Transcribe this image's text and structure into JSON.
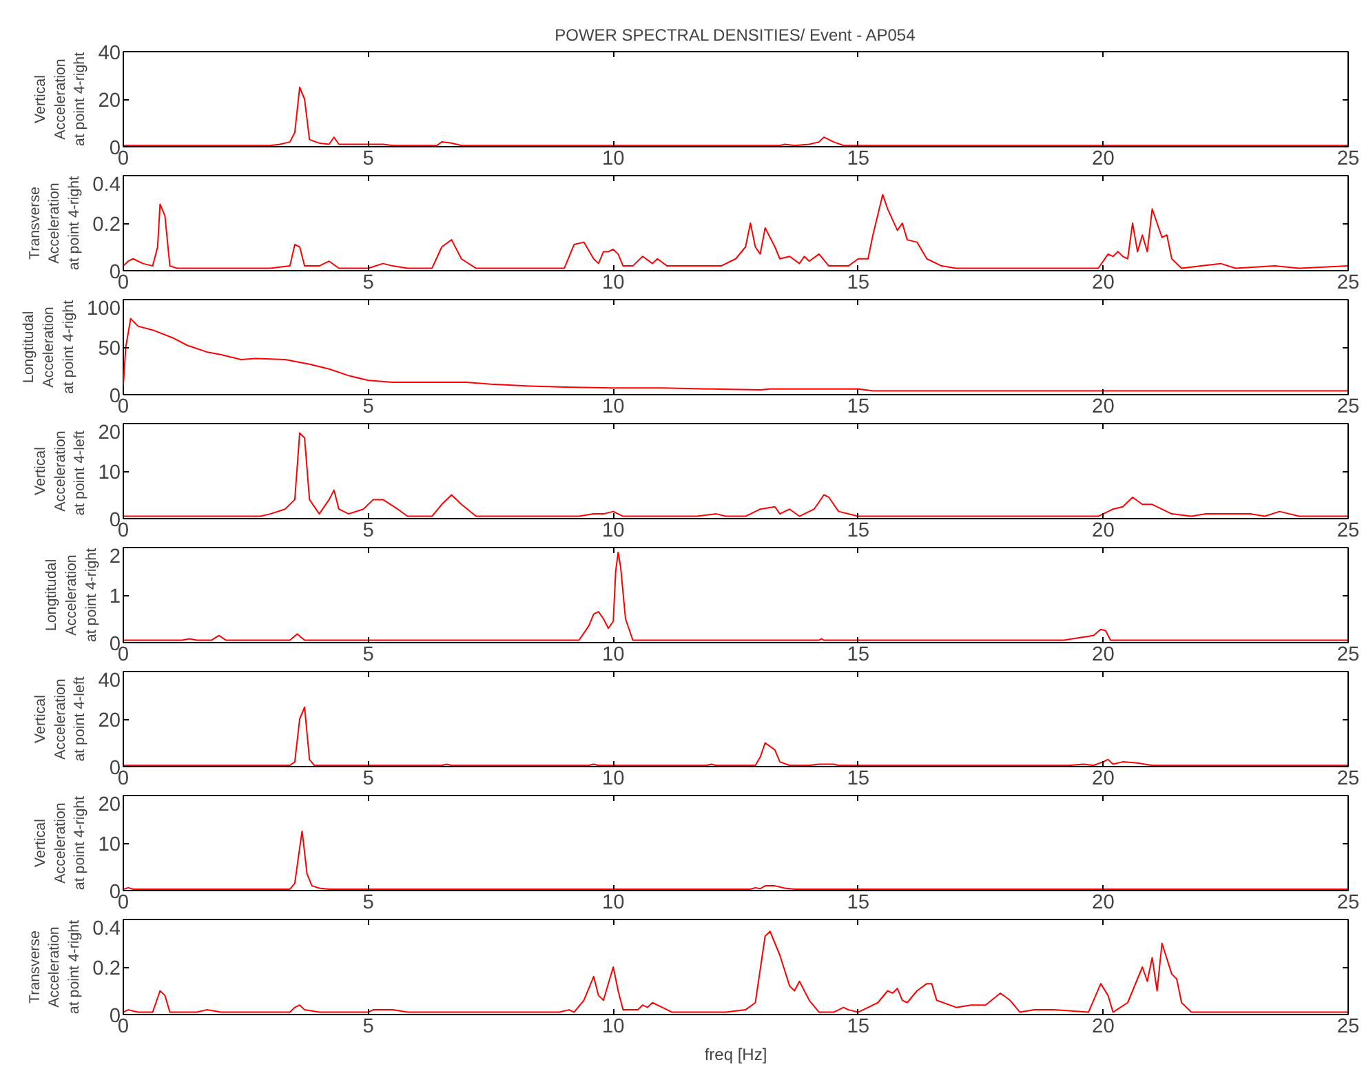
{
  "chart_data": [
    {
      "type": "line",
      "title": "POWER SPECTRAL DENSITIES/ Event - AP054",
      "ylabel": "Vertical\nAcceleration\nat point 4-right",
      "color": "#ff0000",
      "xlim": [
        0,
        25
      ],
      "ylim": [
        0,
        40
      ],
      "xticks": [
        0,
        5,
        10,
        15,
        20,
        25
      ],
      "yticks": [
        0,
        20,
        40
      ],
      "x": [
        0,
        3,
        3.2,
        3.4,
        3.5,
        3.6,
        3.7,
        3.8,
        4.0,
        4.2,
        4.3,
        4.4,
        5,
        5.3,
        5.5,
        6.4,
        6.5,
        6.7,
        6.9,
        13.4,
        13.5,
        13.7,
        14.0,
        14.2,
        14.3,
        14.5,
        14.7,
        25
      ],
      "values": [
        0.5,
        0.5,
        1,
        2,
        6,
        25,
        20,
        3,
        1.5,
        1,
        4,
        1,
        1,
        1,
        0.5,
        0.5,
        2,
        1.5,
        0.5,
        0.5,
        1,
        0.5,
        1,
        2,
        4,
        2,
        0.5,
        0.5
      ]
    },
    {
      "type": "line",
      "ylabel": "Transverse\nAcceleration\nat point 4-right",
      "color": "#ff0000",
      "xlim": [
        0,
        25
      ],
      "ylim": [
        0,
        0.4
      ],
      "xticks": [
        0,
        5,
        10,
        15,
        20,
        25
      ],
      "yticks": [
        0,
        0.2,
        0.4
      ],
      "x": [
        0,
        0.1,
        0.2,
        0.4,
        0.6,
        0.7,
        0.75,
        0.85,
        0.95,
        1.1,
        3.0,
        3.4,
        3.5,
        3.6,
        3.7,
        4.0,
        4.2,
        4.4,
        5.0,
        5.3,
        5.5,
        5.8,
        6.3,
        6.5,
        6.7,
        6.9,
        7.2,
        9.0,
        9.2,
        9.4,
        9.6,
        9.7,
        9.8,
        9.9,
        10.0,
        10.1,
        10.2,
        10.4,
        10.6,
        10.8,
        10.9,
        11.1,
        12.2,
        12.5,
        12.7,
        12.8,
        12.9,
        13.0,
        13.1,
        13.3,
        13.4,
        13.6,
        13.8,
        13.9,
        14.0,
        14.2,
        14.4,
        14.8,
        15.0,
        15.2,
        15.3,
        15.5,
        15.6,
        15.8,
        15.9,
        16.0,
        16.2,
        16.4,
        16.7,
        17.0,
        18.0,
        19.0,
        19.9,
        20.1,
        20.2,
        20.3,
        20.4,
        20.5,
        20.6,
        20.7,
        20.8,
        20.9,
        21.0,
        21.2,
        21.3,
        21.4,
        21.6,
        22.0,
        22.4,
        22.7,
        23.5,
        24.0,
        25
      ],
      "values": [
        0.02,
        0.04,
        0.05,
        0.03,
        0.02,
        0.1,
        0.28,
        0.23,
        0.02,
        0.01,
        0.01,
        0.02,
        0.11,
        0.1,
        0.02,
        0.02,
        0.04,
        0.01,
        0.01,
        0.03,
        0.02,
        0.01,
        0.01,
        0.1,
        0.13,
        0.05,
        0.01,
        0.01,
        0.11,
        0.12,
        0.05,
        0.03,
        0.08,
        0.08,
        0.09,
        0.07,
        0.02,
        0.02,
        0.06,
        0.03,
        0.05,
        0.02,
        0.02,
        0.05,
        0.1,
        0.2,
        0.1,
        0.07,
        0.18,
        0.1,
        0.05,
        0.06,
        0.03,
        0.06,
        0.04,
        0.07,
        0.02,
        0.02,
        0.05,
        0.05,
        0.15,
        0.32,
        0.26,
        0.17,
        0.2,
        0.13,
        0.12,
        0.05,
        0.02,
        0.01,
        0.01,
        0.01,
        0.01,
        0.07,
        0.06,
        0.08,
        0.06,
        0.05,
        0.2,
        0.08,
        0.15,
        0.08,
        0.26,
        0.14,
        0.15,
        0.05,
        0.01,
        0.02,
        0.03,
        0.01,
        0.02,
        0.01,
        0.02
      ]
    },
    {
      "type": "line",
      "ylabel": "Longtitudal\nAcceleration\nat point 4-right",
      "color": "#ff0000",
      "xlim": [
        0,
        25
      ],
      "ylim": [
        0,
        100
      ],
      "xticks": [
        0,
        5,
        10,
        15,
        20,
        25
      ],
      "yticks": [
        0,
        50,
        100
      ],
      "x": [
        0,
        0.05,
        0.15,
        0.3,
        0.6,
        1.0,
        1.3,
        1.7,
        2.0,
        2.4,
        2.7,
        3.3,
        3.8,
        4.2,
        4.6,
        5.0,
        5.5,
        7.0,
        7.5,
        8.3,
        9.0,
        10.0,
        11.0,
        12.0,
        13.0,
        13.2,
        15.0,
        15.3,
        25
      ],
      "values": [
        10,
        50,
        80,
        72,
        68,
        60,
        52,
        45,
        42,
        37,
        38,
        37,
        32,
        27,
        20,
        15,
        13,
        13,
        11,
        9,
        8,
        7,
        7,
        6,
        5,
        6,
        6,
        4,
        4
      ]
    },
    {
      "type": "line",
      "ylabel": "Vertical\nAcceleration\nat point  4-left",
      "color": "#ff0000",
      "xlim": [
        0,
        25
      ],
      "ylim": [
        0,
        20
      ],
      "xticks": [
        0,
        5,
        10,
        15,
        20,
        25
      ],
      "yticks": [
        0,
        10,
        20
      ],
      "x": [
        0,
        2.8,
        3.0,
        3.3,
        3.5,
        3.6,
        3.7,
        3.8,
        4.0,
        4.2,
        4.3,
        4.4,
        4.6,
        4.9,
        5.1,
        5.3,
        5.6,
        5.8,
        6.3,
        6.5,
        6.7,
        6.9,
        7.2,
        9.3,
        9.6,
        9.8,
        10.0,
        10.2,
        11.7,
        12.1,
        12.3,
        12.7,
        13.0,
        13.3,
        13.4,
        13.6,
        13.8,
        14.1,
        14.3,
        14.4,
        14.6,
        15.0,
        19.9,
        20.2,
        20.4,
        20.6,
        20.8,
        21.0,
        21.4,
        21.8,
        22.1,
        23.0,
        23.3,
        23.6,
        24.0,
        25
      ],
      "values": [
        0.5,
        0.5,
        1,
        2,
        4,
        18,
        17,
        4,
        1,
        4,
        6,
        2,
        1,
        2,
        4,
        4,
        2,
        0.5,
        0.5,
        3,
        5,
        3,
        0.5,
        0.5,
        1,
        1,
        1.5,
        0.5,
        0.5,
        1,
        0.5,
        0.5,
        2,
        2.5,
        1,
        2,
        0.5,
        2,
        5,
        4.5,
        1.5,
        0.5,
        0.5,
        2,
        2.5,
        4.5,
        3,
        3,
        1,
        0.5,
        1,
        1,
        0.5,
        1.5,
        0.5,
        0.5
      ]
    },
    {
      "type": "line",
      "ylabel": "Longtitudal\nAcceleration\nat point 4-right",
      "color": "#ff0000",
      "xlim": [
        0,
        25
      ],
      "ylim": [
        0,
        2
      ],
      "xticks": [
        0,
        5,
        10,
        15,
        20,
        25
      ],
      "yticks": [
        0,
        1,
        2
      ],
      "x": [
        0,
        1.2,
        1.35,
        1.5,
        1.8,
        1.95,
        2.1,
        3.4,
        3.55,
        3.7,
        9.3,
        9.5,
        9.6,
        9.7,
        9.8,
        9.9,
        10.0,
        10.05,
        10.1,
        10.15,
        10.25,
        10.4,
        14.2,
        14.25,
        14.3,
        19.2,
        19.5,
        19.8,
        19.95,
        20.05,
        20.15,
        25
      ],
      "values": [
        0.05,
        0.05,
        0.08,
        0.05,
        0.05,
        0.15,
        0.05,
        0.05,
        0.18,
        0.05,
        0.05,
        0.35,
        0.6,
        0.65,
        0.5,
        0.3,
        0.45,
        1.5,
        1.9,
        1.6,
        0.5,
        0.05,
        0.05,
        0.08,
        0.05,
        0.05,
        0.1,
        0.15,
        0.28,
        0.25,
        0.05,
        0.05
      ]
    },
    {
      "type": "line",
      "ylabel": "Vertical\nAcceleration\nat point 4-left",
      "color": "#ff0000",
      "xlim": [
        0,
        25
      ],
      "ylim": [
        0,
        40
      ],
      "xticks": [
        0,
        5,
        10,
        15,
        20,
        25
      ],
      "yticks": [
        0,
        20,
        40
      ],
      "x": [
        0,
        3.4,
        3.5,
        3.6,
        3.7,
        3.8,
        3.9,
        6.5,
        6.6,
        6.7,
        9.5,
        9.6,
        9.7,
        11.9,
        12.0,
        12.1,
        12.9,
        13.0,
        13.1,
        13.3,
        13.4,
        13.6,
        14.0,
        14.2,
        14.5,
        14.6,
        19.3,
        19.6,
        19.8,
        20.0,
        20.1,
        20.2,
        20.4,
        20.7,
        21.0,
        25
      ],
      "values": [
        0.5,
        0.5,
        2,
        20,
        25,
        3,
        0.5,
        0.5,
        1,
        0.5,
        0.5,
        1,
        0.5,
        0.5,
        1,
        0.5,
        0.5,
        4,
        10,
        7,
        2,
        0.5,
        0.5,
        1,
        1,
        0.5,
        0.5,
        1,
        0.5,
        2,
        3,
        1,
        2,
        1.5,
        0.5,
        0.5
      ]
    },
    {
      "type": "line",
      "ylabel": "Vertical\nAcceleration\nat point 4-right",
      "color": "#ff0000",
      "xlim": [
        0,
        25
      ],
      "ylim": [
        0,
        20
      ],
      "xticks": [
        0,
        5,
        10,
        15,
        20,
        25
      ],
      "yticks": [
        0,
        10,
        20
      ],
      "x": [
        0,
        0.1,
        0.2,
        3.4,
        3.5,
        3.6,
        3.65,
        3.75,
        3.85,
        4.0,
        4.2,
        12.8,
        12.9,
        13.0,
        13.1,
        13.3,
        13.5,
        13.7,
        25
      ],
      "values": [
        0.3,
        0.6,
        0.3,
        0.3,
        1.5,
        9,
        12.5,
        3.5,
        1,
        0.5,
        0.3,
        0.3,
        0.6,
        0.4,
        1,
        1,
        0.5,
        0.3,
        0.3
      ]
    },
    {
      "type": "line",
      "ylabel": "Transverse\nAcceleration\nat point 4-right",
      "xlabel": "freq [Hz]",
      "color": "#ff0000",
      "xlim": [
        0,
        25
      ],
      "ylim": [
        0,
        0.4
      ],
      "xticks": [
        0,
        5,
        10,
        15,
        20,
        25
      ],
      "yticks": [
        0,
        0.2,
        0.4
      ],
      "x": [
        0,
        0.1,
        0.3,
        0.6,
        0.75,
        0.85,
        0.95,
        1.5,
        1.7,
        2.0,
        2.2,
        3.4,
        3.5,
        3.6,
        3.7,
        4.0,
        5.0,
        5.1,
        5.5,
        5.8,
        6.5,
        8.9,
        9.1,
        9.2,
        9.4,
        9.6,
        9.7,
        9.8,
        10.0,
        10.1,
        10.2,
        10.5,
        10.6,
        10.7,
        10.8,
        11.0,
        11.2,
        12.3,
        12.7,
        12.9,
        13.1,
        13.2,
        13.4,
        13.6,
        13.7,
        13.8,
        14.0,
        14.2,
        14.5,
        14.7,
        14.8,
        15.0,
        15.4,
        15.6,
        15.7,
        15.8,
        15.9,
        16.0,
        16.2,
        16.4,
        16.5,
        16.6,
        17.0,
        17.3,
        17.6,
        17.9,
        18.1,
        18.3,
        18.6,
        19.0,
        19.7,
        19.95,
        20.1,
        20.2,
        20.5,
        20.8,
        20.9,
        21.0,
        21.1,
        21.2,
        21.4,
        21.5,
        21.6,
        21.8,
        22.5,
        23.2,
        25
      ],
      "values": [
        0.01,
        0.02,
        0.01,
        0.01,
        0.1,
        0.08,
        0.01,
        0.01,
        0.02,
        0.01,
        0.01,
        0.01,
        0.03,
        0.04,
        0.02,
        0.01,
        0.01,
        0.02,
        0.02,
        0.01,
        0.01,
        0.01,
        0.02,
        0.01,
        0.06,
        0.16,
        0.08,
        0.06,
        0.2,
        0.1,
        0.02,
        0.02,
        0.04,
        0.03,
        0.05,
        0.03,
        0.01,
        0.01,
        0.02,
        0.05,
        0.33,
        0.35,
        0.25,
        0.12,
        0.1,
        0.14,
        0.06,
        0.01,
        0.01,
        0.03,
        0.02,
        0.01,
        0.05,
        0.1,
        0.09,
        0.11,
        0.06,
        0.05,
        0.1,
        0.13,
        0.13,
        0.06,
        0.03,
        0.04,
        0.04,
        0.09,
        0.06,
        0.01,
        0.02,
        0.02,
        0.01,
        0.13,
        0.08,
        0.01,
        0.05,
        0.2,
        0.14,
        0.24,
        0.1,
        0.3,
        0.17,
        0.15,
        0.05,
        0.01,
        0.01,
        0.01,
        0.01
      ]
    }
  ]
}
